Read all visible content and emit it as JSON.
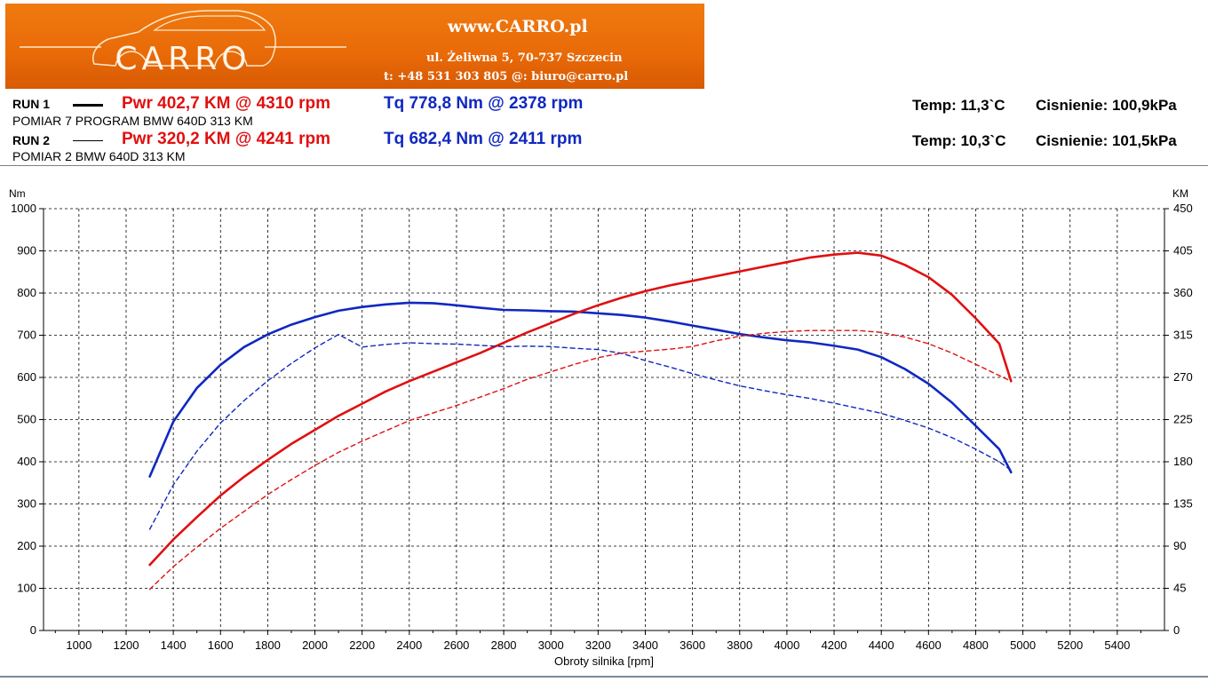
{
  "banner": {
    "logo_text": "CARRO",
    "site": "www.CARRO.pl",
    "address": "ul. Żeliwna 5, 70-737 Szczecin",
    "contact": "t: +48 531 303 805   @: biuro@carro.pl"
  },
  "runs": [
    {
      "label": "RUN 1",
      "pwr": "Pwr  402,7 KM @ 4310 rpm",
      "tq": "Tq 778,8 Nm @ 2378 rpm",
      "description": "POMIAR 7 PROGRAM BMW 640D 313 KM",
      "temp": "Temp: 11,3`C",
      "pressure": "Cisnienie: 100,9kPa"
    },
    {
      "label": "RUN 2",
      "pwr": "Pwr  320,2 KM @ 4241 rpm",
      "tq": "Tq 682,4 Nm @ 2411 rpm",
      "description": "POMIAR 2 BMW  640D 313 KM",
      "temp": "Temp: 10,3`C",
      "pressure": "Cisnienie: 101,5kPa"
    }
  ],
  "colors": {
    "power": "#e01010",
    "torque": "#1028c0",
    "banner": "#ec7010"
  },
  "chart_data": {
    "type": "line",
    "xlabel": "Obroty silnika [rpm]",
    "ylabel_left": "Nm",
    "ylabel_right": "KM",
    "xlim": [
      850,
      5600
    ],
    "ylim_left": [
      0,
      1000
    ],
    "ylim_right": [
      0,
      450
    ],
    "x_ticks": [
      1000,
      1200,
      1400,
      1600,
      1800,
      2000,
      2200,
      2400,
      2600,
      2800,
      3000,
      3200,
      3400,
      3600,
      3800,
      4000,
      4200,
      4400,
      4600,
      4800,
      5000,
      5200,
      5400
    ],
    "y_ticks_left": [
      0,
      100,
      200,
      300,
      400,
      500,
      600,
      700,
      800,
      900,
      1000
    ],
    "y_ticks_right": [
      0,
      45,
      90,
      135,
      180,
      225,
      270,
      315,
      360,
      405,
      450
    ],
    "grid": true,
    "series": [
      {
        "name": "",
        "run": 1,
        "quantity": "torque",
        "axis": "left",
        "style": "solid",
        "x": [
          1300,
          1400,
          1500,
          1600,
          1700,
          1800,
          1900,
          2000,
          2100,
          2200,
          2300,
          2400,
          2500,
          2600,
          2700,
          2800,
          2900,
          3000,
          3100,
          3200,
          3300,
          3400,
          3500,
          3600,
          3700,
          3800,
          3900,
          4000,
          4100,
          4200,
          4300,
          4400,
          4500,
          4600,
          4700,
          4800,
          4900,
          4950
        ],
        "y": [
          365,
          495,
          575,
          630,
          672,
          702,
          725,
          743,
          758,
          767,
          773,
          777,
          776,
          771,
          765,
          760,
          759,
          757,
          756,
          752,
          748,
          742,
          733,
          723,
          713,
          703,
          695,
          688,
          683,
          675,
          666,
          648,
          620,
          585,
          540,
          485,
          430,
          375
        ]
      },
      {
        "name": "",
        "run": 1,
        "quantity": "power",
        "axis": "right",
        "style": "solid",
        "x": [
          1300,
          1400,
          1500,
          1600,
          1700,
          1800,
          1900,
          2000,
          2100,
          2200,
          2300,
          2400,
          2500,
          2600,
          2700,
          2800,
          2900,
          3000,
          3100,
          3200,
          3300,
          3400,
          3500,
          3600,
          3700,
          3800,
          3900,
          4000,
          4100,
          4200,
          4300,
          4400,
          4500,
          4600,
          4700,
          4800,
          4900,
          4950
        ],
        "y": [
          70,
          97,
          121,
          144,
          164,
          182,
          199,
          214,
          229,
          242,
          255,
          266,
          276,
          286,
          296,
          307,
          318,
          328,
          338,
          347,
          355,
          362,
          368,
          373,
          378,
          383,
          388,
          393,
          398,
          401,
          403,
          400,
          390,
          377,
          358,
          333,
          306,
          266
        ]
      },
      {
        "name": "",
        "run": 2,
        "quantity": "torque",
        "axis": "left",
        "style": "dashed",
        "x": [
          1300,
          1400,
          1500,
          1600,
          1700,
          1800,
          1900,
          2000,
          2100,
          2200,
          2300,
          2400,
          2500,
          2600,
          2700,
          2800,
          2900,
          3000,
          3100,
          3200,
          3300,
          3400,
          3500,
          3600,
          3700,
          3800,
          3900,
          4000,
          4100,
          4200,
          4300,
          4400,
          4500,
          4600,
          4700,
          4800,
          4900,
          4950
        ],
        "y": [
          240,
          345,
          425,
          492,
          545,
          592,
          633,
          670,
          702,
          672,
          678,
          682,
          680,
          679,
          676,
          673,
          674,
          673,
          669,
          666,
          657,
          640,
          625,
          609,
          594,
          580,
          569,
          559,
          550,
          539,
          527,
          515,
          498,
          480,
          457,
          430,
          400,
          380
        ]
      },
      {
        "name": "",
        "run": 2,
        "quantity": "power",
        "axis": "right",
        "style": "dashed",
        "x": [
          1300,
          1400,
          1500,
          1600,
          1700,
          1800,
          1900,
          2000,
          2100,
          2200,
          2300,
          2400,
          2500,
          2600,
          2700,
          2800,
          2900,
          3000,
          3100,
          3200,
          3300,
          3400,
          3500,
          3600,
          3700,
          3800,
          3900,
          4000,
          4100,
          4200,
          4300,
          4400,
          4500,
          4600,
          4700,
          4800,
          4900,
          4950
        ],
        "y": [
          44,
          68,
          89,
          109,
          127,
          145,
          161,
          176,
          190,
          202,
          213,
          224,
          232,
          240,
          249,
          258,
          268,
          276,
          284,
          291,
          296,
          298,
          300,
          303,
          309,
          314,
          317,
          319,
          320,
          320,
          320,
          318,
          313,
          306,
          296,
          284,
          272,
          266
        ]
      }
    ]
  }
}
